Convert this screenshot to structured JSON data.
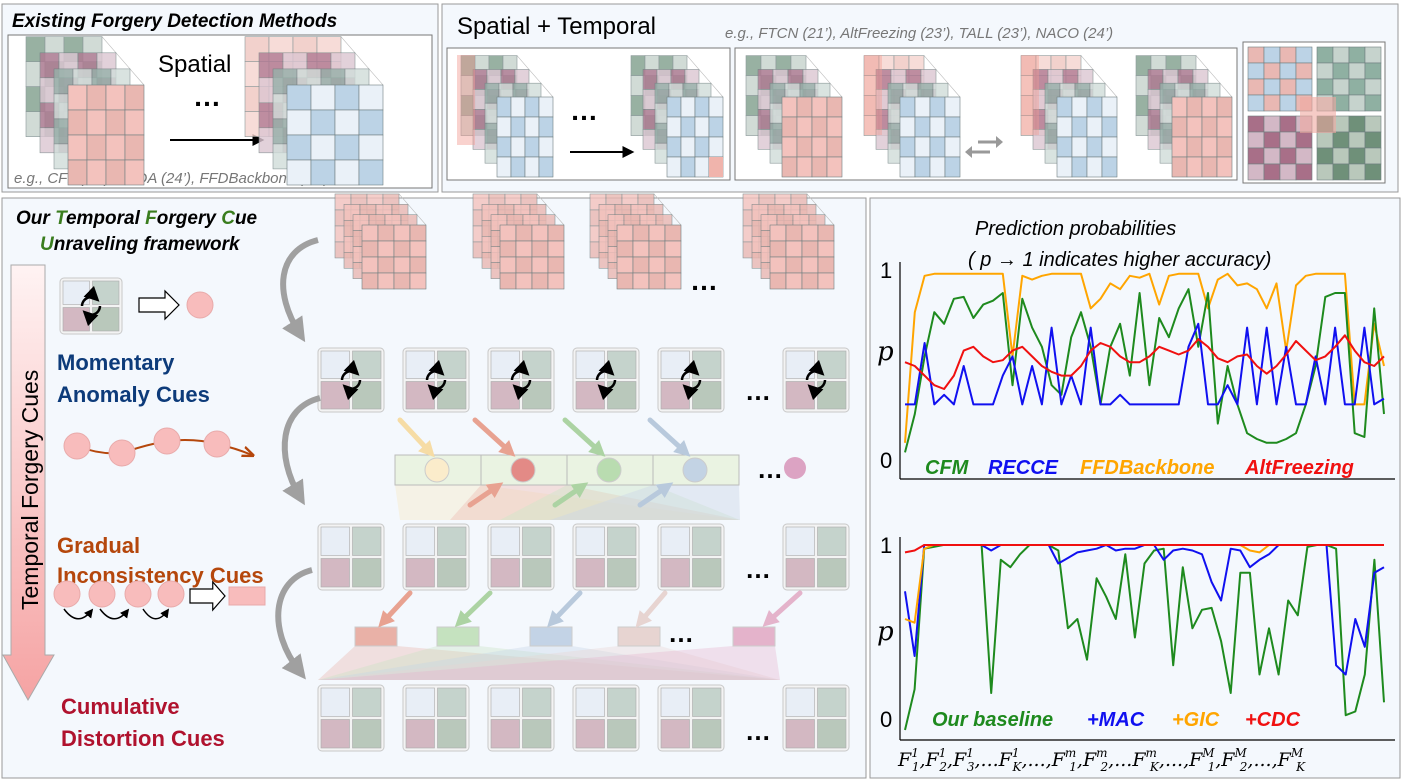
{
  "top_left": {
    "title": "Existing Forgery Detection Methods",
    "spatial_label": "Spatial",
    "ellipsis": "…",
    "examples": "e.g., CFM(23’), LSDA (24’), FFDBackbone (24’)"
  },
  "top_right": {
    "title": "Spatial + Temporal",
    "examples": "e.g., FTCN (21’), AltFreezing (23’), TALL (23’), NACO (24’)",
    "ellipsis": "…"
  },
  "framework": {
    "title_line1": [
      {
        "text": "Our ",
        "color": "#000000"
      },
      {
        "text": "T",
        "color": "#3a7d1e"
      },
      {
        "text": "emporal ",
        "color": "#000000"
      },
      {
        "text": "F",
        "color": "#3a7d1e"
      },
      {
        "text": "orgery ",
        "color": "#000000"
      },
      {
        "text": "C",
        "color": "#3a7d1e"
      },
      {
        "text": "ue",
        "color": "#000000"
      }
    ],
    "title_line2": [
      {
        "text": "U",
        "color": "#3a7d1e"
      },
      {
        "text": "nraveling framework",
        "color": "#000000"
      }
    ],
    "arrow_label": "Temporal Forgery Cues",
    "cues": [
      {
        "line1": "Momentary",
        "line2": "Anomaly Cues",
        "color": "#0d3b7a"
      },
      {
        "line1": "Gradual",
        "line2": "Inconsistency Cues",
        "color": "#b5470c"
      },
      {
        "line1": "Cumulative",
        "line2": "Distortion Cues",
        "color": "#b0122e"
      }
    ],
    "ellipsis": "…"
  },
  "chart_data": [
    {
      "type": "line",
      "title": "Prediction probabilities",
      "subtitle": "( p → 1 indicates higher accuracy)",
      "ylabel": "p",
      "ylim": [
        0,
        1
      ],
      "y_tick_labels": [
        "1",
        "0"
      ],
      "grid": false,
      "legend": "bottom",
      "series": [
        {
          "name": "CFM",
          "color": "#1e8a1e",
          "values": [
            0.05,
            0.25,
            0.55,
            0.78,
            0.72,
            0.85,
            0.86,
            0.75,
            0.82,
            0.84,
            0.88,
            0.4,
            0.85,
            0.7,
            0.6,
            0.4,
            0.35,
            0.65,
            0.78,
            0.6,
            0.3,
            0.6,
            0.72,
            0.45,
            0.88,
            0.4,
            0.75,
            0.65,
            0.8,
            0.9,
            0.6,
            0.88,
            0.2,
            0.5,
            0.3,
            0.15,
            0.12,
            0.1,
            0.1,
            0.12,
            0.15,
            0.3,
            0.5,
            0.86,
            0.88,
            0.88,
            0.15,
            0.13,
            0.8,
            0.25
          ]
        },
        {
          "name": "RECCE",
          "color": "#1010f0",
          "values": [
            0.3,
            0.3,
            0.62,
            0.3,
            0.35,
            0.3,
            0.5,
            0.3,
            0.3,
            0.3,
            0.45,
            0.55,
            0.3,
            0.5,
            0.3,
            0.7,
            0.3,
            0.45,
            0.3,
            0.7,
            0.3,
            0.3,
            0.35,
            0.3,
            0.3,
            0.3,
            0.3,
            0.3,
            0.3,
            0.6,
            0.72,
            0.3,
            0.3,
            0.4,
            0.3,
            0.7,
            0.3,
            0.7,
            0.3,
            0.6,
            0.3,
            0.3,
            0.55,
            0.3,
            0.7,
            0.3,
            0.3,
            0.7,
            0.3,
            0.33
          ]
        },
        {
          "name": "FFDBackbone",
          "color": "#ffa500",
          "values": [
            0.1,
            0.78,
            0.97,
            0.98,
            0.98,
            0.98,
            0.98,
            0.98,
            0.98,
            0.98,
            0.98,
            0.55,
            0.97,
            0.95,
            0.97,
            0.98,
            0.98,
            0.98,
            0.98,
            0.8,
            0.85,
            0.93,
            0.9,
            0.97,
            0.96,
            0.98,
            0.82,
            0.97,
            0.98,
            0.98,
            0.98,
            0.8,
            0.95,
            0.98,
            0.92,
            0.93,
            0.9,
            0.8,
            0.93,
            0.58,
            0.92,
            0.97,
            0.98,
            0.98,
            0.98,
            0.98,
            0.3,
            0.3,
            0.72,
            0.5
          ]
        },
        {
          "name": "AltFreezing",
          "color": "#f01010",
          "values": [
            0.52,
            0.5,
            0.45,
            0.4,
            0.38,
            0.45,
            0.58,
            0.6,
            0.55,
            0.52,
            0.53,
            0.58,
            0.6,
            0.55,
            0.5,
            0.47,
            0.45,
            0.45,
            0.5,
            0.58,
            0.62,
            0.6,
            0.55,
            0.52,
            0.52,
            0.55,
            0.6,
            0.58,
            0.56,
            0.58,
            0.64,
            0.6,
            0.54,
            0.52,
            0.55,
            0.56,
            0.5,
            0.46,
            0.5,
            0.56,
            0.63,
            0.58,
            0.53,
            0.55,
            0.6,
            0.66,
            0.58,
            0.52,
            0.5,
            0.55
          ]
        }
      ]
    },
    {
      "type": "line",
      "ylabel": "p",
      "ylim": [
        0,
        1
      ],
      "y_tick_labels": [
        "1",
        "0"
      ],
      "grid": false,
      "legend": "bottom",
      "x_tick_labels": [
        {
          "base": "F",
          "sub": "1",
          "sup": "1"
        },
        {
          "base": "F",
          "sub": "2",
          "sup": "1"
        },
        {
          "base": "F",
          "sub": "3",
          "sup": "1"
        },
        {
          "pre": "...",
          "base": "F",
          "sub": "K",
          "sup": "1"
        },
        {
          "pre": "...",
          "base": ""
        },
        {
          "base": "F",
          "sub": "1",
          "sup": "m"
        },
        {
          "base": "F",
          "sub": "2",
          "sup": "m"
        },
        {
          "pre": "...",
          "base": "F",
          "sub": "K",
          "sup": "m"
        },
        {
          "pre": "...",
          "base": ""
        },
        {
          "base": "F",
          "sub": "1",
          "sup": "M"
        },
        {
          "base": "F",
          "sub": "2",
          "sup": "M"
        },
        {
          "pre": "...",
          "base": ""
        },
        {
          "base": "F",
          "sub": "K",
          "sup": "M"
        }
      ],
      "series": [
        {
          "name": "Our baseline",
          "color": "#1e8a1e",
          "values": [
            0,
            0.22,
            0.98,
            0.99,
            1,
            1,
            1,
            1,
            1,
            0.2,
            0.92,
            0.88,
            0.95,
            1,
            1,
            1,
            0.97,
            0.55,
            0.6,
            0.38,
            0.82,
            0.72,
            0.6,
            0.95,
            0.5,
            0.9,
            0.97,
            0.98,
            0.35,
            0.88,
            0.55,
            0.65,
            0.66,
            0.48,
            0.2,
            0.85,
            0.85,
            0.3,
            0.55,
            0.3,
            0.7,
            0.62,
            0.99,
            1,
            1,
            0.98,
            0.08,
            0.1,
            0.3,
            0.92,
            0.15
          ]
        },
        {
          "name": "+MAC",
          "color": "#1010f0",
          "values": [
            0.75,
            0.4,
            1,
            1,
            1,
            1,
            1,
            1,
            1,
            0.97,
            1,
            1,
            1,
            1,
            1,
            1,
            0.9,
            0.93,
            0.96,
            0.97,
            0.98,
            1,
            0.97,
            0.98,
            0.98,
            1,
            1,
            0.92,
            0.97,
            0.98,
            0.97,
            0.95,
            0.8,
            0.7,
            0.98,
            0.97,
            0.88,
            0.92,
            0.95,
            1,
            1,
            1,
            1,
            1,
            1,
            0.35,
            0.3,
            0.6,
            0.45,
            0.85,
            0.88
          ]
        },
        {
          "name": "+GIC",
          "color": "#ffa500",
          "values": [
            0.6,
            0.58,
            0.98,
            1,
            1,
            1,
            1,
            1,
            1,
            1,
            1,
            1,
            1,
            1,
            1,
            1,
            1,
            1,
            1,
            1,
            1,
            1,
            1,
            1,
            1,
            1,
            1,
            1,
            1,
            1,
            1,
            1,
            1,
            1,
            1,
            1,
            0.97,
            0.96,
            1,
            1,
            1,
            1,
            1,
            1,
            1,
            1,
            1,
            1,
            1,
            1,
            1
          ]
        },
        {
          "name": "+CDC",
          "color": "#f01010",
          "values": [
            0.96,
            0.97,
            1,
            1,
            1,
            1,
            1,
            1,
            1,
            1,
            1,
            1,
            1,
            1,
            1,
            1,
            1,
            1,
            1,
            1,
            1,
            1,
            1,
            1,
            1,
            1,
            1,
            1,
            1,
            1,
            1,
            1,
            1,
            1,
            1,
            1,
            1,
            1,
            1,
            1,
            1,
            1,
            1,
            1,
            1,
            1,
            1,
            1,
            1,
            1,
            1
          ]
        }
      ]
    }
  ]
}
